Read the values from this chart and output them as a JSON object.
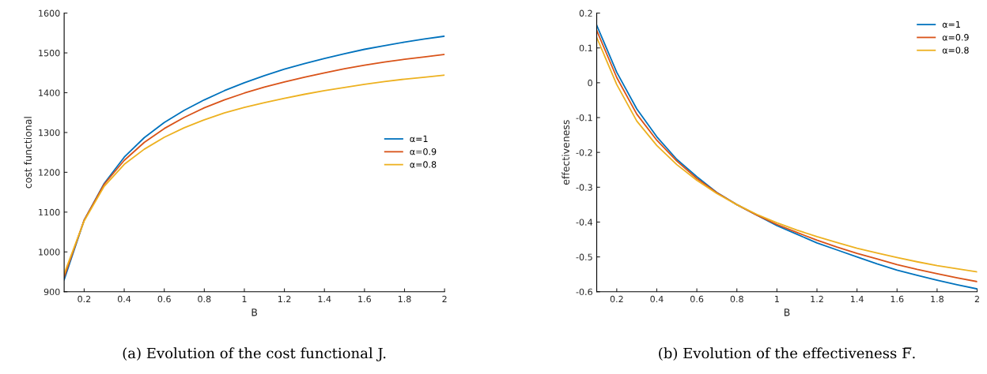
{
  "chart_data": [
    {
      "type": "line",
      "title": "(a) Evolution of the cost functional J.",
      "xlabel": "B",
      "ylabel": "cost functional",
      "x": [
        0.1,
        0.2,
        0.3,
        0.4,
        0.5,
        0.6,
        0.7,
        0.8,
        0.9,
        1.0,
        1.1,
        1.2,
        1.3,
        1.4,
        1.5,
        1.6,
        1.7,
        1.8,
        1.9,
        2.0
      ],
      "xlim": [
        0.1,
        2
      ],
      "xticks": [
        0.2,
        0.4,
        0.6,
        0.8,
        1,
        1.2,
        1.4,
        1.6,
        1.8,
        2
      ],
      "ylim": [
        900,
        1600
      ],
      "yticks": [
        900,
        1000,
        1100,
        1200,
        1300,
        1400,
        1500,
        1600
      ],
      "grid": false,
      "legend": "right",
      "marker": "none",
      "line_style": "solid",
      "series": [
        {
          "name": "α=1",
          "color": "#0072bd",
          "values": [
            930,
            1080,
            1172,
            1238,
            1287,
            1325,
            1356,
            1382,
            1405,
            1425,
            1443,
            1459,
            1473,
            1486,
            1498,
            1509,
            1518,
            1527,
            1535,
            1542
          ]
        },
        {
          "name": "α=0.9",
          "color": "#d95319",
          "values": [
            937,
            1080,
            1170,
            1230,
            1275,
            1310,
            1338,
            1362,
            1382,
            1399,
            1414,
            1427,
            1439,
            1450,
            1460,
            1469,
            1477,
            1484,
            1490,
            1496
          ]
        },
        {
          "name": "α=0.8",
          "color": "#edb120",
          "values": [
            945,
            1078,
            1165,
            1220,
            1258,
            1288,
            1312,
            1332,
            1349,
            1363,
            1375,
            1386,
            1396,
            1405,
            1413,
            1421,
            1428,
            1434,
            1439,
            1444
          ]
        }
      ]
    },
    {
      "type": "line",
      "title": "(b) Evolution of the effectiveness F̅.",
      "xlabel": "B",
      "ylabel": "effectiveness",
      "x": [
        0.1,
        0.2,
        0.3,
        0.4,
        0.5,
        0.6,
        0.7,
        0.8,
        0.9,
        1.0,
        1.1,
        1.2,
        1.3,
        1.4,
        1.5,
        1.6,
        1.7,
        1.8,
        1.9,
        2.0
      ],
      "xlim": [
        0.1,
        2
      ],
      "xticks": [
        0.2,
        0.4,
        0.6,
        0.8,
        1,
        1.2,
        1.4,
        1.6,
        1.8,
        2
      ],
      "ylim": [
        -0.6,
        0.2
      ],
      "yticks": [
        -0.6,
        -0.5,
        -0.4,
        -0.3,
        -0.2,
        -0.1,
        0,
        0.1,
        0.2
      ],
      "grid": false,
      "legend": "top right",
      "marker": "none",
      "line_style": "solid",
      "series": [
        {
          "name": "α=1",
          "color": "#0072bd",
          "values": [
            0.165,
            0.03,
            -0.075,
            -0.155,
            -0.22,
            -0.27,
            -0.315,
            -0.35,
            -0.38,
            -0.41,
            -0.435,
            -0.46,
            -0.48,
            -0.5,
            -0.52,
            -0.538,
            -0.553,
            -0.567,
            -0.58,
            -0.592
          ]
        },
        {
          "name": "α=0.9",
          "color": "#d95319",
          "values": [
            0.15,
            0.015,
            -0.09,
            -0.165,
            -0.225,
            -0.275,
            -0.316,
            -0.35,
            -0.38,
            -0.407,
            -0.43,
            -0.452,
            -0.472,
            -0.49,
            -0.506,
            -0.522,
            -0.536,
            -0.548,
            -0.56,
            -0.571
          ]
        },
        {
          "name": "α=0.8",
          "color": "#edb120",
          "values": [
            0.13,
            -0.005,
            -0.11,
            -0.18,
            -0.235,
            -0.28,
            -0.318,
            -0.35,
            -0.378,
            -0.402,
            -0.423,
            -0.442,
            -0.459,
            -0.475,
            -0.489,
            -0.502,
            -0.514,
            -0.525,
            -0.534,
            -0.543
          ]
        }
      ]
    }
  ]
}
